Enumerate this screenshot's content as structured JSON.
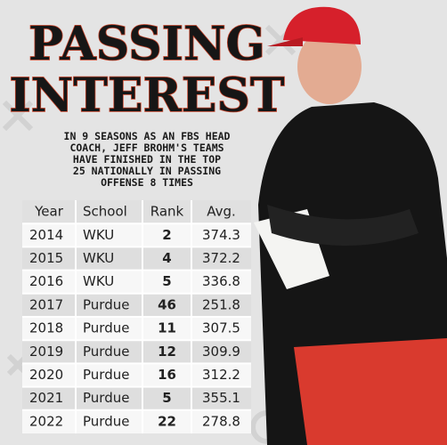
{
  "header": {
    "title_lines": [
      "PASSING",
      "INTEREST"
    ],
    "subtitle_lines": [
      "IN 9 SEASONS AS AN FBS HEAD",
      "COACH, JEFF BROHM'S TEAMS",
      "HAVE FINISHED IN THE TOP",
      "25 NATIONALLY IN PASSING",
      "OFFENSE 8 TIMES"
    ]
  },
  "table": {
    "columns": [
      "Year",
      "School",
      "Rank",
      "Avg."
    ],
    "rows": [
      [
        2014,
        "WKU",
        2,
        374.3
      ],
      [
        2015,
        "WKU",
        4,
        372.2
      ],
      [
        2016,
        "WKU",
        5,
        336.8
      ],
      [
        2017,
        "Purdue",
        46,
        251.8
      ],
      [
        2018,
        "Purdue",
        11,
        307.5
      ],
      [
        2019,
        "Purdue",
        12,
        309.9
      ],
      [
        2020,
        "Purdue",
        16,
        312.2
      ],
      [
        2021,
        "Purdue",
        5,
        355.1
      ],
      [
        2022,
        "Purdue",
        22,
        278.8
      ]
    ]
  }
}
